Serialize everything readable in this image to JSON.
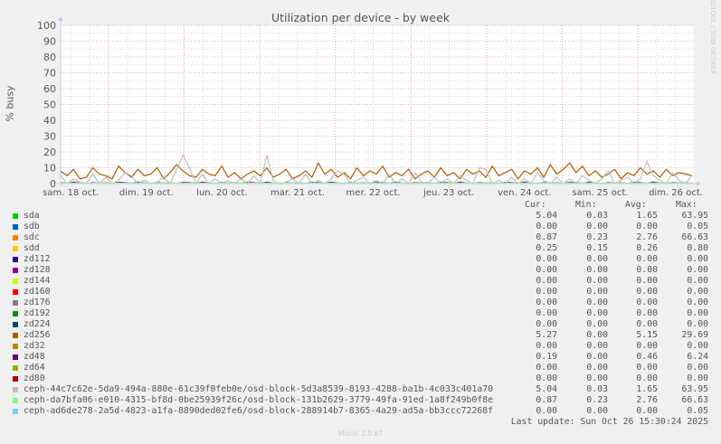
{
  "title": "Utilization per device - by week",
  "watermark": "RRDTOOL / TOBI OETIKER",
  "footer": "Munin 2.0.67",
  "last_update": "Last update: Sun Oct 26 15:30:24 2025",
  "legend_headers": {
    "cur": "Cur:",
    "min": "Min:",
    "avg": "Avg:",
    "max": "Max:"
  },
  "colors": {
    "background": "#f0f0f0",
    "plot": "#ffffff",
    "major_grid": "#e09090",
    "minor_grid": "#c8c8c8",
    "axis": "#c8c8f0"
  },
  "chart_data": {
    "type": "line",
    "title": "Utilization per device - by week",
    "ylabel": "% busy",
    "ylim": [
      0,
      100
    ],
    "yticks": [
      0,
      10,
      20,
      30,
      40,
      50,
      60,
      70,
      80,
      90,
      100
    ],
    "grid": true,
    "x_start": "2025-10-18T10:00",
    "x_step_hours": 2,
    "xticks": [
      "sam. 18 oct.",
      "dim. 19 oct.",
      "lun. 20 oct.",
      "mar. 21 oct.",
      "mer. 22 oct.",
      "jeu. 23 oct.",
      "ven. 24 oct.",
      "sam. 25 oct.",
      "dim. 26 oct."
    ],
    "series": [
      {
        "name": "sda",
        "color": "#00cc00",
        "cur": "5.04",
        "min": "0.03",
        "avg": "1.65",
        "max": "63.95"
      },
      {
        "name": "sdb",
        "color": "#0066b3",
        "cur": "0.00",
        "min": "0.00",
        "avg": "0.00",
        "max": "0.05"
      },
      {
        "name": "sdc",
        "color": "#ff8000",
        "cur": "0.87",
        "min": "0.23",
        "avg": "2.76",
        "max": "66.63"
      },
      {
        "name": "sdd",
        "color": "#ffcc00",
        "cur": "0.25",
        "min": "0.15",
        "avg": "0.26",
        "max": "0.80"
      },
      {
        "name": "zd112",
        "color": "#330099",
        "cur": "0.00",
        "min": "0.00",
        "avg": "0.00",
        "max": "0.00"
      },
      {
        "name": "zd128",
        "color": "#990099",
        "cur": "0.00",
        "min": "0.00",
        "avg": "0.00",
        "max": "0.00"
      },
      {
        "name": "zd144",
        "color": "#ccff00",
        "cur": "0.00",
        "min": "0.00",
        "avg": "0.00",
        "max": "0.00"
      },
      {
        "name": "zd160",
        "color": "#ff0000",
        "cur": "0.00",
        "min": "0.00",
        "avg": "0.00",
        "max": "0.00"
      },
      {
        "name": "zd176",
        "color": "#808080",
        "cur": "0.00",
        "min": "0.00",
        "avg": "0.00",
        "max": "0.00"
      },
      {
        "name": "zd192",
        "color": "#008f00",
        "cur": "0.00",
        "min": "0.00",
        "avg": "0.00",
        "max": "0.00"
      },
      {
        "name": "zd224",
        "color": "#00487d",
        "cur": "0.00",
        "min": "0.00",
        "avg": "0.00",
        "max": "0.00"
      },
      {
        "name": "zd256",
        "color": "#b35a00",
        "cur": "5.27",
        "min": "0.00",
        "avg": "5.15",
        "max": "29.69",
        "values": [
          8,
          5,
          9,
          3,
          4,
          10,
          6,
          5,
          3,
          11,
          7,
          4,
          9,
          5,
          6,
          10,
          3,
          7,
          12,
          8,
          5,
          4,
          9,
          6,
          5,
          11,
          4,
          7,
          3,
          6,
          8,
          5,
          10,
          4,
          6,
          9,
          3,
          5,
          8,
          4,
          13,
          6,
          9,
          4,
          7,
          3,
          10,
          5,
          8,
          6,
          11,
          4,
          7,
          5,
          9,
          3,
          6,
          8,
          4,
          10,
          5,
          7,
          3,
          9,
          6,
          8,
          4,
          11,
          5,
          7,
          9,
          3,
          8,
          6,
          10,
          4,
          12,
          6,
          9,
          13,
          7,
          11,
          5,
          8,
          4,
          6,
          9,
          3,
          7,
          5,
          10,
          6,
          8,
          4,
          9,
          5,
          7,
          6,
          5
        ]
      },
      {
        "name": "zd32",
        "color": "#b38f00",
        "cur": "0.00",
        "min": "0.00",
        "avg": "0.00",
        "max": "0.00"
      },
      {
        "name": "zd48",
        "color": "#6b006b",
        "cur": "0.19",
        "min": "0.00",
        "avg": "0.46",
        "max": "6.24",
        "values": [
          0.6,
          0.2,
          0.9,
          0.4,
          0,
          0.7,
          0.3,
          0.5,
          0.1,
          0.8,
          0.6,
          0.2,
          0.9,
          0.4,
          0,
          0.7,
          0.3,
          0.5,
          0.1,
          0.8,
          0.6,
          0.2,
          0.9,
          0.4,
          0,
          0.7,
          0.3,
          0.5,
          0.1,
          0.8,
          0.6,
          0.2,
          0.9,
          0.4,
          0,
          0.7,
          0.3,
          0.5,
          0.1,
          0.8,
          0.6,
          0.2,
          0.9,
          0.4,
          0,
          0.7,
          0.3,
          0.5,
          0.1,
          0.8,
          0.6,
          0.2,
          0.9,
          0.4,
          0,
          0.7,
          0.3,
          0.5,
          0.1,
          0.8,
          0.6,
          0.2,
          0.9,
          0.4,
          0,
          0.7,
          0.3,
          0.5,
          0.1,
          0.8,
          0.6,
          0.2,
          0.9,
          0.4,
          0,
          0.7,
          0.3,
          0.5,
          0.1,
          0.8,
          0.6,
          0.2,
          0.9,
          0.4,
          0,
          0.7,
          0.3,
          0.5,
          0.1,
          0.8,
          0.6,
          0.2,
          0.9,
          0.4,
          0,
          0.7,
          0.3,
          0.5,
          0.1
        ]
      },
      {
        "name": "zd64",
        "color": "#8fb300",
        "cur": "0.00",
        "min": "0.00",
        "avg": "0.00",
        "max": "0.00"
      },
      {
        "name": "zd80",
        "color": "#b30000",
        "cur": "0.00",
        "min": "0.00",
        "avg": "0.00",
        "max": "0.00"
      },
      {
        "name": "ceph-44c7c62e-5da9-494a-880e-61c39f0feb0e/osd-block-5d3a8539-8193-4288-ba1b-4c033c401a70",
        "color": "#bebebe",
        "cur": "5.04",
        "min": "0.03",
        "avg": "1.65",
        "max": "63.95",
        "values": [
          5,
          0,
          3,
          1,
          0,
          6,
          0,
          4,
          0,
          2,
          7,
          5,
          0,
          2,
          0,
          1,
          4,
          0,
          9,
          18,
          10,
          0,
          6,
          0,
          3,
          0,
          2,
          0,
          3,
          0,
          5,
          0,
          18,
          2,
          0,
          1,
          3,
          0,
          6,
          0,
          2,
          0,
          3,
          8,
          6,
          0,
          2,
          4,
          0,
          2,
          0,
          6,
          0,
          3,
          0,
          7,
          1,
          0,
          4,
          0,
          3,
          0,
          5,
          2,
          0,
          10,
          9,
          0,
          2,
          0,
          4,
          0,
          3,
          0,
          7,
          2,
          0,
          4,
          0,
          3,
          0,
          5,
          2,
          0,
          3,
          8,
          0,
          2,
          4,
          0,
          3,
          14,
          5,
          2,
          0,
          7,
          2,
          0,
          5
        ]
      },
      {
        "name": "ceph-da7bfa06-e010-4315-bf8d-0be25939f26c/osd-block-131b2629-3779-49fa-91ed-1a8f249b0f8e",
        "color": "#80ff80",
        "cur": "0.87",
        "min": "0.23",
        "avg": "2.76",
        "max": "66.63",
        "values": [
          9,
          0,
          6,
          2,
          0,
          5,
          0,
          8,
          0,
          3,
          13,
          10,
          0,
          4,
          0,
          2,
          7,
          0,
          12,
          26,
          9,
          0,
          11,
          0,
          6,
          0,
          3,
          0,
          5,
          0,
          8,
          0,
          19,
          4,
          0,
          2,
          6,
          0,
          12,
          0,
          3,
          0,
          5,
          29,
          12,
          0,
          4,
          8,
          0,
          3,
          0,
          10,
          0,
          6,
          0,
          12,
          2,
          0,
          7,
          0,
          5,
          0,
          9,
          4,
          0,
          16,
          16,
          0,
          3,
          0,
          8,
          0,
          6,
          0,
          12,
          3,
          0,
          7,
          0,
          5,
          0,
          9,
          4,
          0,
          6,
          18,
          0,
          3,
          7,
          0,
          5,
          26,
          9,
          3,
          0,
          12,
          4,
          0,
          5
        ]
      },
      {
        "name": "ceph-ad6de278-2a5d-4823-a1fa-8890ded02fe6/osd-block-288914b7-8365-4a29-ad5a-bb3ccc72268f",
        "color": "#80c9ff",
        "cur": "0.00",
        "min": "0.00",
        "avg": "0.00",
        "max": "0.05"
      }
    ]
  }
}
